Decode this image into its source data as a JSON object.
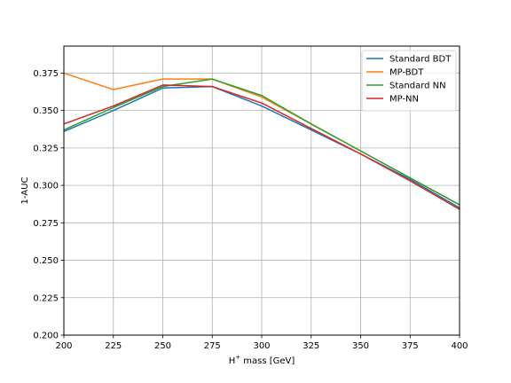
{
  "chart_data": {
    "type": "line",
    "title": "",
    "xlabel_prefix": "H",
    "xlabel_sup": "+",
    "xlabel_suffix": " mass [GeV]",
    "ylabel": "1-AUC",
    "xlim": [
      200,
      400
    ],
    "ylim": [
      0.2,
      0.393
    ],
    "xticks": [
      200,
      225,
      250,
      275,
      300,
      325,
      350,
      375,
      400
    ],
    "yticks": [
      0.2,
      0.225,
      0.25,
      0.275,
      0.3,
      0.325,
      0.35,
      0.375
    ],
    "ytick_labels": [
      "0.200",
      "0.225",
      "0.250",
      "0.275",
      "0.300",
      "0.325",
      "0.350",
      "0.375"
    ],
    "grid": true,
    "legend_position": "top-right",
    "x": [
      200,
      225,
      250,
      275,
      300,
      325,
      350,
      375,
      400
    ],
    "series": [
      {
        "name": "Standard BDT",
        "color": "#1f77b4",
        "values": [
          0.336,
          0.35,
          0.365,
          0.366,
          0.353,
          0.337,
          0.321,
          0.304,
          0.285
        ]
      },
      {
        "name": "MP-BDT",
        "color": "#ff7f0e",
        "values": [
          0.375,
          0.364,
          0.371,
          0.371,
          0.359,
          0.341,
          0.323,
          0.305,
          0.287
        ]
      },
      {
        "name": "Standard NN",
        "color": "#2ca02c",
        "values": [
          0.337,
          0.352,
          0.366,
          0.371,
          0.36,
          0.341,
          0.323,
          0.305,
          0.287
        ]
      },
      {
        "name": "MP-NN",
        "color": "#d62728",
        "values": [
          0.341,
          0.353,
          0.367,
          0.366,
          0.355,
          0.338,
          0.321,
          0.303,
          0.284
        ]
      }
    ]
  }
}
